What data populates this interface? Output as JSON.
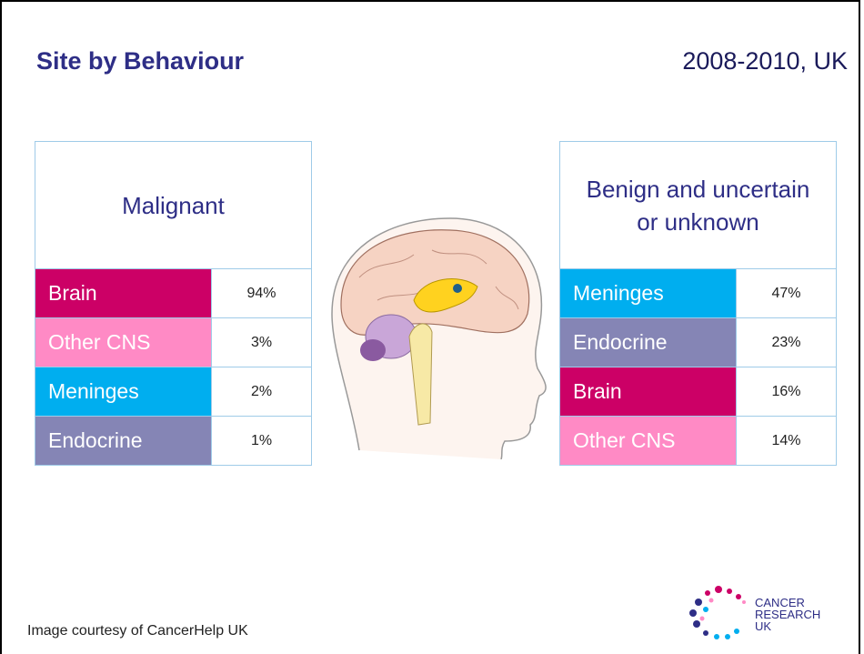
{
  "title": "Site by Behaviour",
  "subtitle": "2008-2010, UK",
  "tables": [
    {
      "header": "Malignant",
      "rows": [
        [
          "Brain",
          "94%"
        ],
        [
          "Other CNS",
          "3%"
        ],
        [
          "Meninges",
          "2%"
        ],
        [
          "Endocrine",
          "1%"
        ]
      ]
    },
    {
      "header": "Benign and uncertain or unknown",
      "rows": [
        [
          "Meninges",
          "47%"
        ],
        [
          "Endocrine",
          "23%"
        ],
        [
          "Brain",
          "16%"
        ],
        [
          "Other CNS",
          "14%"
        ]
      ]
    }
  ],
  "footer": "Image courtesy of CancerHelp UK",
  "logo": {
    "line1": "CANCER",
    "line2": "RESEARCH",
    "line3": "UK"
  }
}
